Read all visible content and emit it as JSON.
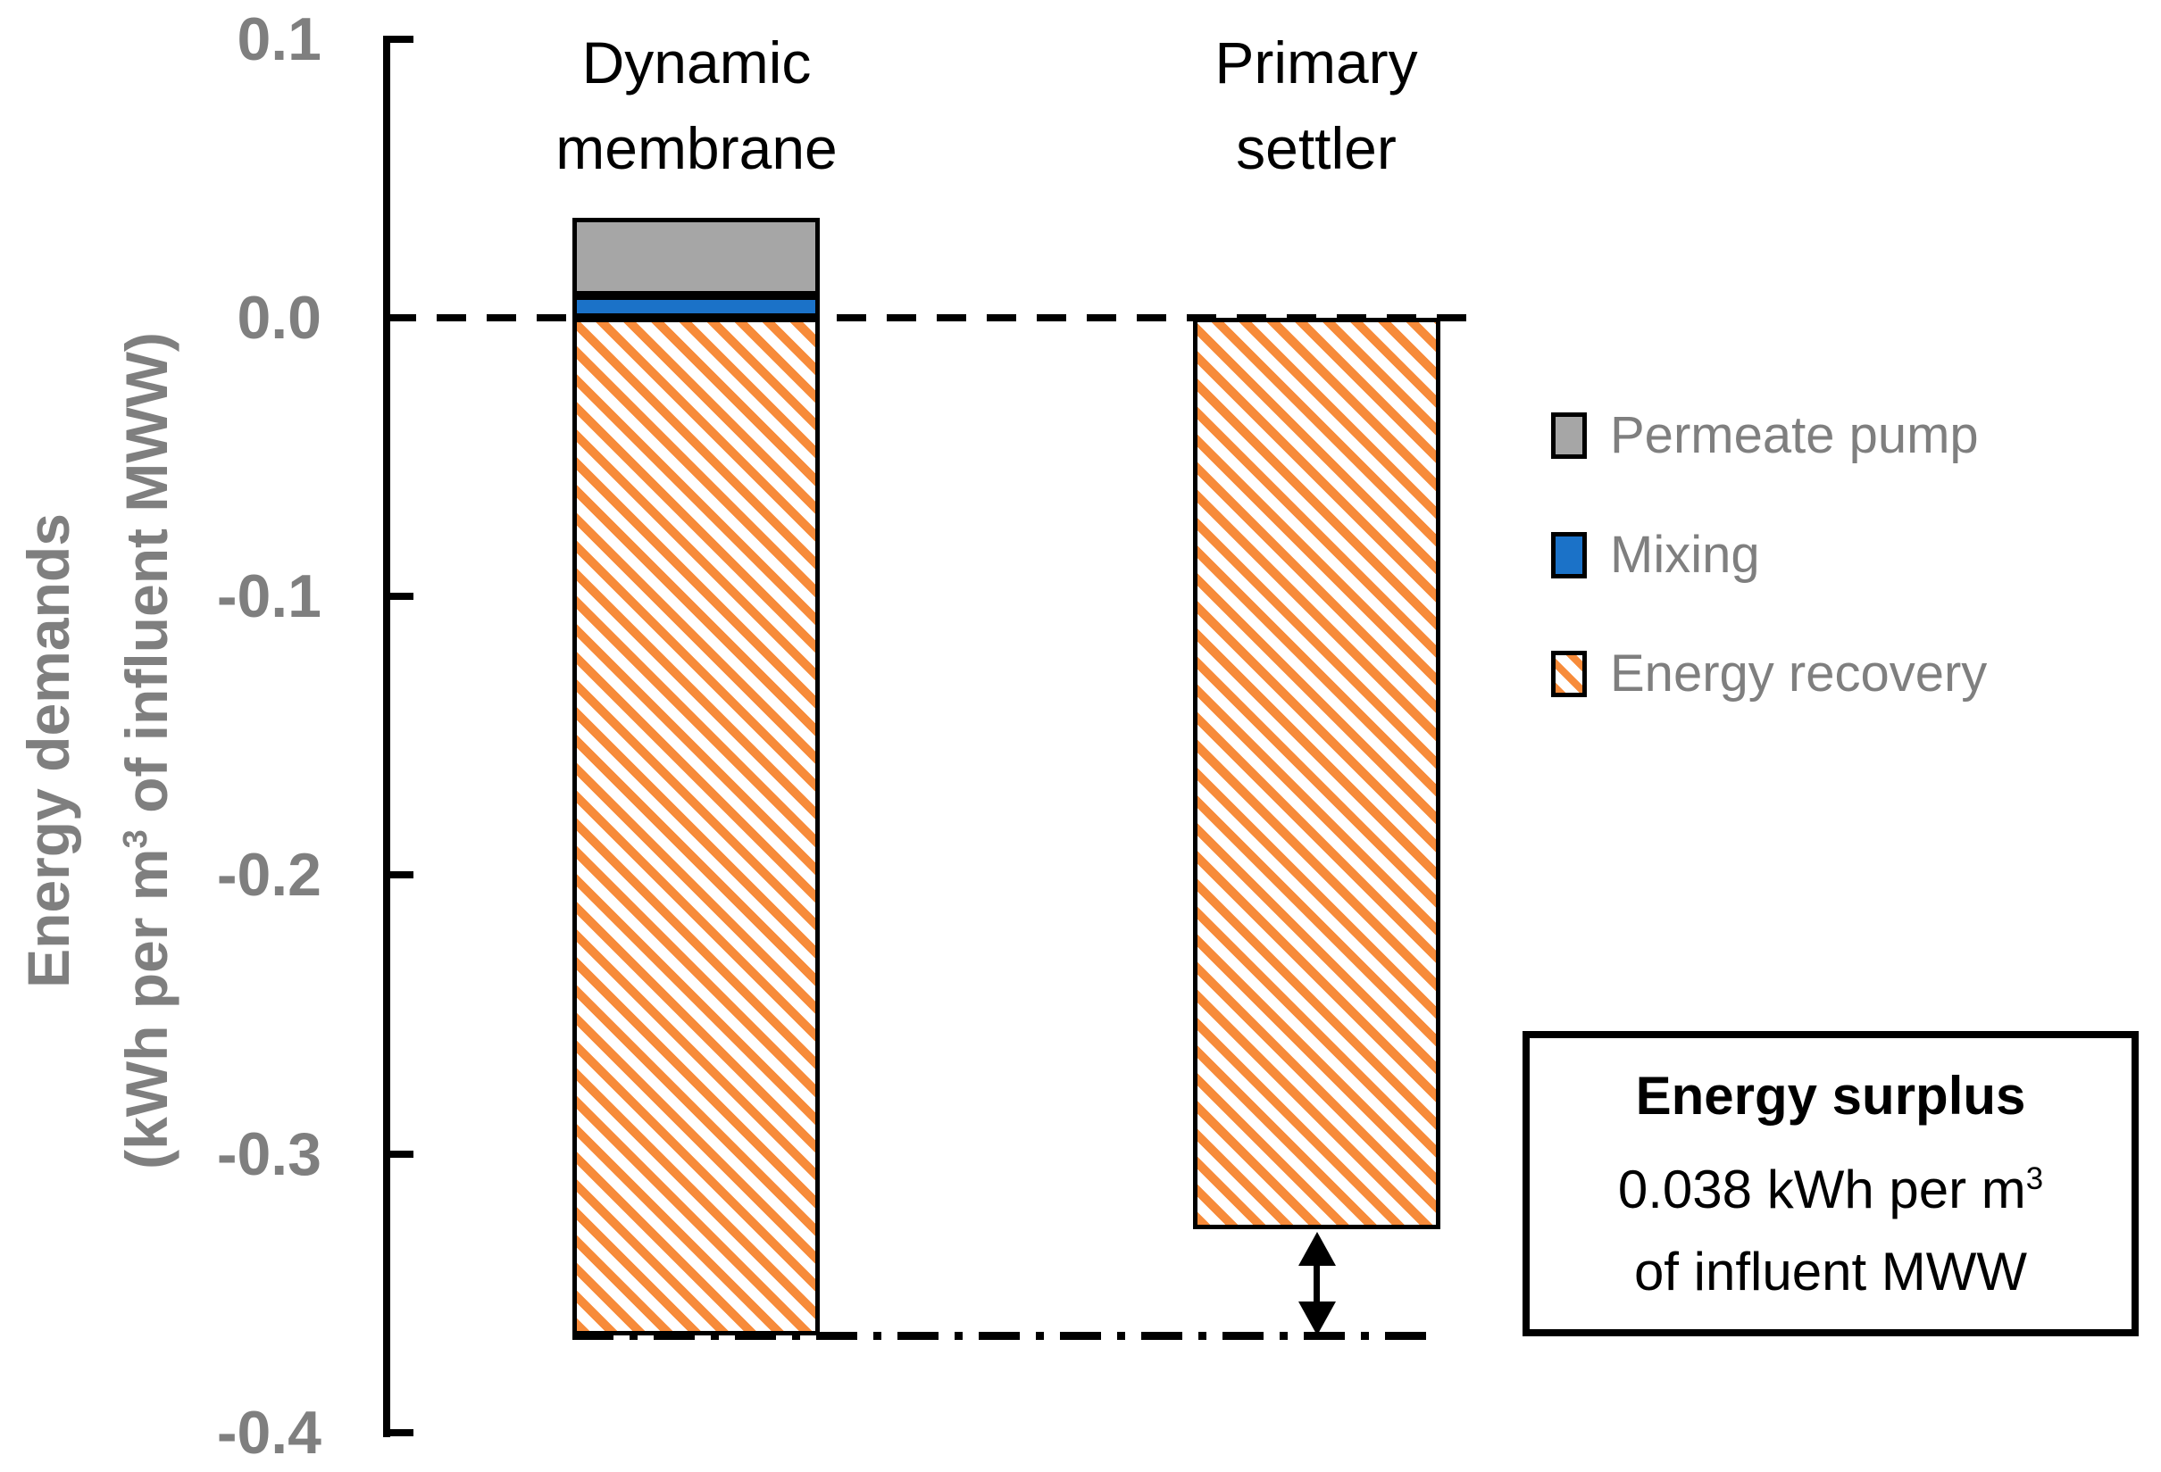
{
  "chart_data": {
    "type": "bar",
    "stacked": true,
    "categories": [
      "Dynamic membrane",
      "Primary settler"
    ],
    "category_label_lines": [
      [
        "Dynamic",
        "membrane"
      ],
      [
        "Primary",
        "settler"
      ]
    ],
    "series": [
      {
        "name": "Permeate pump",
        "color": "#A6A6A6",
        "pattern": "solid",
        "values": [
          0.028,
          0
        ]
      },
      {
        "name": "Mixing",
        "color": "#1B72C8",
        "pattern": "solid",
        "values": [
          0.008,
          0
        ]
      },
      {
        "name": "Energy recovery",
        "color": "#F78B3A",
        "pattern": "diagonal-stripes",
        "values": [
          -0.365,
          -0.327
        ]
      }
    ],
    "ylabel_line1": "Energy demands",
    "ylabel_line2_pre": "(kWh per m",
    "ylabel_line2_sup": "3",
    "ylabel_line2_post": " of influent MWW)",
    "ylim": [
      -0.4,
      0.1
    ],
    "ytick_values": [
      0.1,
      0,
      -0.1,
      -0.2,
      -0.3,
      -0.4
    ],
    "yticks": [
      "0.1",
      "0.0",
      "-0.1",
      "-0.2",
      "-0.3",
      "-0.4"
    ],
    "grid": false,
    "zero_line": {
      "style": "dashed",
      "value": 0
    },
    "reference_line": {
      "style": "dash-dot",
      "value": -0.365
    },
    "annotation_arrow": {
      "from": -0.327,
      "to": -0.365
    }
  },
  "legend": {
    "position": "right",
    "items": [
      {
        "label": "Permeate pump"
      },
      {
        "label": "Mixing"
      },
      {
        "label": "Energy recovery"
      }
    ]
  },
  "annotation_box": {
    "line1": "Energy surplus",
    "line2_pre": "0.038 kWh per m",
    "line2_sup": "3",
    "line3": "of influent MWW"
  },
  "colors": {
    "axis_text": "#7F7F7F",
    "label_text": "#000000"
  }
}
